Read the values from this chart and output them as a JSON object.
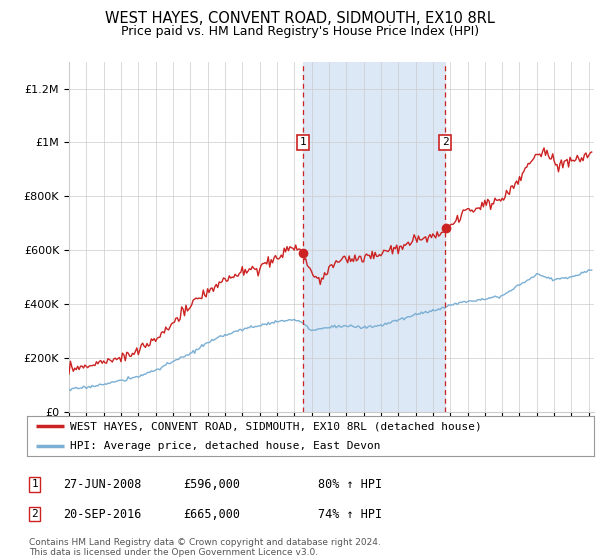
{
  "title": "WEST HAYES, CONVENT ROAD, SIDMOUTH, EX10 8RL",
  "subtitle": "Price paid vs. HM Land Registry's House Price Index (HPI)",
  "legend_line1": "WEST HAYES, CONVENT ROAD, SIDMOUTH, EX10 8RL (detached house)",
  "legend_line2": "HPI: Average price, detached house, East Devon",
  "sale1_date": "27-JUN-2008",
  "sale1_price": "£596,000",
  "sale1_hpi": "80% ↑ HPI",
  "sale1_year": 2008.5,
  "sale1_value": 596000,
  "sale2_date": "20-SEP-2016",
  "sale2_price": "£665,000",
  "sale2_hpi": "74% ↑ HPI",
  "sale2_year": 2016.72,
  "sale2_value": 665000,
  "footer": "Contains HM Land Registry data © Crown copyright and database right 2024.\nThis data is licensed under the Open Government Licence v3.0.",
  "ylim": [
    0,
    1300000
  ],
  "yticks": [
    0,
    200000,
    400000,
    600000,
    800000,
    1000000,
    1200000
  ],
  "ytick_labels": [
    "£0",
    "£200K",
    "£400K",
    "£600K",
    "£800K",
    "£1M",
    "£1.2M"
  ],
  "hpi_color": "#7bafd4",
  "price_color": "#cc2222",
  "background_color": "#ffffff",
  "shade_color": "#dce8f5",
  "grid_color": "#cccccc",
  "title_fontsize": 10.5,
  "subtitle_fontsize": 9,
  "xmin": 1995,
  "xmax": 2025.3
}
